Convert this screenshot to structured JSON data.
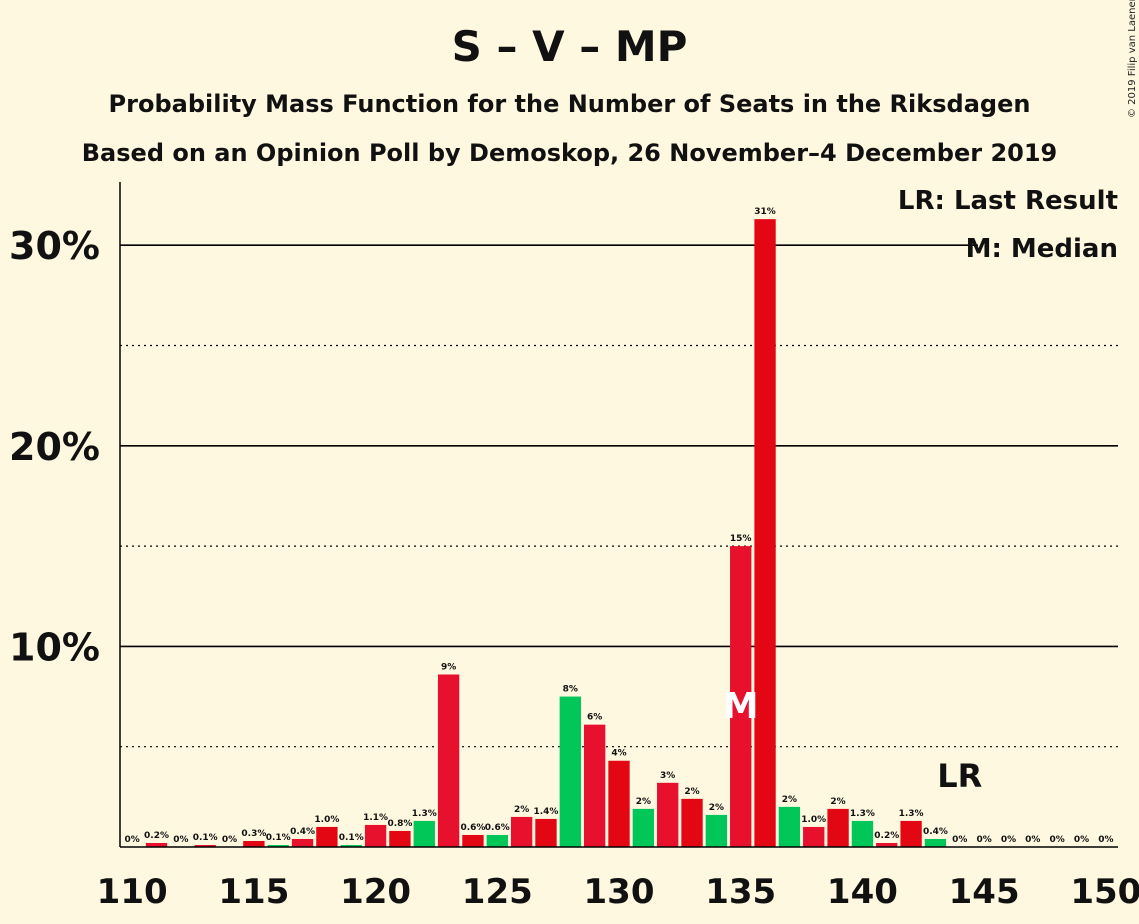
{
  "chart_data": {
    "type": "bar",
    "title": "S – V – MP",
    "subtitle": "Probability Mass Function for the Number of Seats in the Riksdagen",
    "subtitle2": "Based on an Opinion Poll by Demoskop, 26 November–4 December 2019",
    "copyright": "© 2019 Filip van Laenen",
    "legend": [
      "LR: Last Result",
      "M: Median"
    ],
    "ylim": [
      0,
      34
    ],
    "xlim": [
      110,
      150
    ],
    "y_ticks": [
      {
        "value": 10,
        "label": "10%"
      },
      {
        "value": 20,
        "label": "20%"
      },
      {
        "value": 30,
        "label": "30%"
      }
    ],
    "x_ticks": [
      {
        "value": 110,
        "label": "110"
      },
      {
        "value": 115,
        "label": "115"
      },
      {
        "value": 120,
        "label": "120"
      },
      {
        "value": 125,
        "label": "125"
      },
      {
        "value": 130,
        "label": "130"
      },
      {
        "value": 135,
        "label": "135"
      },
      {
        "value": 140,
        "label": "140"
      },
      {
        "value": 145,
        "label": "145"
      },
      {
        "value": 150,
        "label": "150"
      }
    ],
    "median": {
      "seat": 135,
      "label": "M"
    },
    "last_result": {
      "seat": 144,
      "label": "LR"
    },
    "colors": {
      "red": "#e8112d",
      "green": "#00c757",
      "darkred": "#e30613"
    },
    "bars": [
      {
        "seat": 110,
        "value": 0,
        "label": "0%",
        "color": "red"
      },
      {
        "seat": 111,
        "value": 0.2,
        "label": "0.2%",
        "color": "red"
      },
      {
        "seat": 112,
        "value": 0,
        "label": "0%",
        "color": "red"
      },
      {
        "seat": 113,
        "value": 0.1,
        "label": "0.1%",
        "color": "red"
      },
      {
        "seat": 114,
        "value": 0,
        "label": "0%",
        "color": "red"
      },
      {
        "seat": 115,
        "value": 0.3,
        "label": "0.3%",
        "color": "darkred"
      },
      {
        "seat": 116,
        "value": 0.1,
        "label": "0.1%",
        "color": "green"
      },
      {
        "seat": 117,
        "value": 0.4,
        "label": "0.4%",
        "color": "red"
      },
      {
        "seat": 118,
        "value": 1.0,
        "label": "1.0%",
        "color": "darkred"
      },
      {
        "seat": 119,
        "value": 0.1,
        "label": "0.1%",
        "color": "green"
      },
      {
        "seat": 120,
        "value": 1.1,
        "label": "1.1%",
        "color": "red"
      },
      {
        "seat": 121,
        "value": 0.8,
        "label": "0.8%",
        "color": "darkred"
      },
      {
        "seat": 122,
        "value": 1.3,
        "label": "1.3%",
        "color": "green"
      },
      {
        "seat": 123,
        "value": 8.6,
        "label": "9%",
        "color": "red"
      },
      {
        "seat": 124,
        "value": 0.6,
        "label": "0.6%",
        "color": "darkred"
      },
      {
        "seat": 125,
        "value": 0.6,
        "label": "0.6%",
        "color": "green"
      },
      {
        "seat": 126,
        "value": 1.5,
        "label": "2%",
        "color": "red"
      },
      {
        "seat": 127,
        "value": 1.4,
        "label": "1.4%",
        "color": "darkred"
      },
      {
        "seat": 128,
        "value": 7.5,
        "label": "8%",
        "color": "green"
      },
      {
        "seat": 129,
        "value": 6.1,
        "label": "6%",
        "color": "red"
      },
      {
        "seat": 130,
        "value": 4.3,
        "label": "4%",
        "color": "darkred"
      },
      {
        "seat": 131,
        "value": 1.9,
        "label": "2%",
        "color": "green"
      },
      {
        "seat": 132,
        "value": 3.2,
        "label": "3%",
        "color": "red"
      },
      {
        "seat": 133,
        "value": 2.4,
        "label": "2%",
        "color": "darkred"
      },
      {
        "seat": 134,
        "value": 1.6,
        "label": "2%",
        "color": "green"
      },
      {
        "seat": 135,
        "value": 15.0,
        "label": "15%",
        "color": "red"
      },
      {
        "seat": 136,
        "value": 31.3,
        "label": "31%",
        "color": "darkred"
      },
      {
        "seat": 137,
        "value": 2.0,
        "label": "2%",
        "color": "green"
      },
      {
        "seat": 138,
        "value": 1.0,
        "label": "1.0%",
        "color": "red"
      },
      {
        "seat": 139,
        "value": 1.9,
        "label": "2%",
        "color": "darkred"
      },
      {
        "seat": 140,
        "value": 1.3,
        "label": "1.3%",
        "color": "green"
      },
      {
        "seat": 141,
        "value": 0.2,
        "label": "0.2%",
        "color": "red"
      },
      {
        "seat": 142,
        "value": 1.3,
        "label": "1.3%",
        "color": "darkred"
      },
      {
        "seat": 143,
        "value": 0.4,
        "label": "0.4%",
        "color": "green"
      },
      {
        "seat": 144,
        "value": 0,
        "label": "0%",
        "color": "red"
      },
      {
        "seat": 145,
        "value": 0,
        "label": "0%",
        "color": "red"
      },
      {
        "seat": 146,
        "value": 0,
        "label": "0%",
        "color": "red"
      },
      {
        "seat": 147,
        "value": 0,
        "label": "0%",
        "color": "red"
      },
      {
        "seat": 148,
        "value": 0,
        "label": "0%",
        "color": "red"
      },
      {
        "seat": 149,
        "value": 0,
        "label": "0%",
        "color": "red"
      },
      {
        "seat": 150,
        "value": 0,
        "label": "0%",
        "color": "red"
      }
    ]
  }
}
